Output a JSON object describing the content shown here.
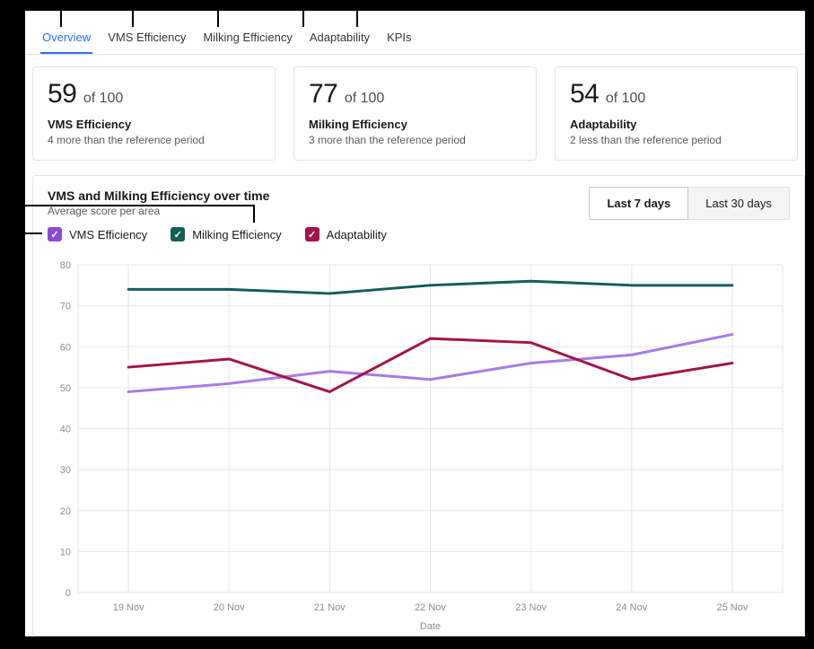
{
  "tabs": [
    {
      "label": "Overview",
      "active": true
    },
    {
      "label": "VMS Efficiency",
      "active": false
    },
    {
      "label": "Milking Efficiency",
      "active": false
    },
    {
      "label": "Adaptability",
      "active": false
    },
    {
      "label": "KPIs",
      "active": false
    }
  ],
  "cards": [
    {
      "value": "59",
      "suffix": "of 100",
      "label": "VMS Efficiency",
      "note": "4 more than the reference period"
    },
    {
      "value": "77",
      "suffix": "of 100",
      "label": "Milking Efficiency",
      "note": "3 more than the reference period"
    },
    {
      "value": "54",
      "suffix": "of 100",
      "label": "Adaptability",
      "note": "2 less than the reference period"
    }
  ],
  "chart_section": {
    "title": "VMS and Milking Efficiency over time",
    "subtitle": "Average score per area",
    "checkbox_glyph": "✓",
    "range_buttons": [
      {
        "label": "Last 7 days",
        "active": true
      },
      {
        "label": "Last 30 days",
        "active": false
      }
    ],
    "legend": [
      {
        "label": "VMS Efficiency",
        "color": "#8a4bd4",
        "checked": true
      },
      {
        "label": "Milking Efficiency",
        "color": "#155e56",
        "checked": true
      },
      {
        "label": "Adaptability",
        "color": "#a2134e",
        "checked": true
      }
    ]
  },
  "chart_data": {
    "type": "line",
    "x": [
      "19 Nov",
      "20 Nov",
      "21 Nov",
      "22 Nov",
      "23 Nov",
      "24 Nov",
      "25 Nov"
    ],
    "series": [
      {
        "name": "VMS Efficiency",
        "color": "#a77be8",
        "values": [
          49,
          51,
          54,
          52,
          56,
          58,
          63
        ]
      },
      {
        "name": "Adaptability",
        "color": "#a2134e",
        "values": [
          55,
          57,
          49,
          62,
          61,
          52,
          56
        ]
      },
      {
        "name": "Milking Efficiency",
        "color": "#155e56",
        "values": [
          74,
          74,
          73,
          75,
          76,
          75,
          75
        ]
      }
    ],
    "title": "VMS and Milking Efficiency over time",
    "xlabel": "Date",
    "ylabel": "",
    "ylim": [
      0,
      80
    ],
    "yticks": [
      0,
      10,
      20,
      30,
      40,
      50,
      60,
      70,
      80
    ],
    "grid": true,
    "legend_position": "top"
  }
}
